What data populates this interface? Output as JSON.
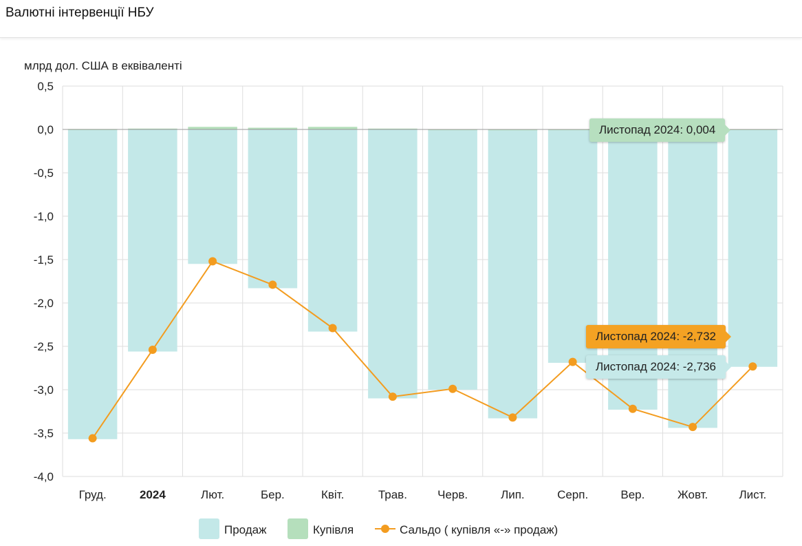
{
  "header": {
    "title": "Валютні інтервенції НБУ"
  },
  "chart_data": {
    "type": "bar",
    "title": "Валютні інтервенції НБУ",
    "ylabel": "млрд дол. США в еквіваленті",
    "xlabel": "",
    "ylim": [
      -4.0,
      0.5
    ],
    "yticks": [
      "0,5",
      "0,0",
      "-0,5",
      "-1,0",
      "-1,5",
      "-2,0",
      "-2,5",
      "-3,0",
      "-3,5",
      "-4,0"
    ],
    "ytick_values": [
      0.5,
      0,
      -0.5,
      -1,
      -1.5,
      -2,
      -2.5,
      -3,
      -3.5,
      -4
    ],
    "grid": true,
    "legend_position": "bottom",
    "categories": [
      "Груд.",
      "2024",
      "Лют.",
      "Бер.",
      "Квіт.",
      "Трав.",
      "Черв.",
      "Лип.",
      "Серп.",
      "Вер.",
      "Жовт.",
      "Лист."
    ],
    "bold_category": "2024",
    "series": [
      {
        "name": "Продаж",
        "type": "bar",
        "color": "#c3e8e8",
        "values": [
          -3.57,
          -2.56,
          -1.55,
          -1.83,
          -2.33,
          -3.1,
          -3.0,
          -3.33,
          -2.69,
          -3.23,
          -3.44,
          -2.736
        ]
      },
      {
        "name": "Купівля",
        "type": "bar",
        "color": "#b5dfbc",
        "values": [
          0.005,
          0.01,
          0.03,
          0.02,
          0.03,
          0.01,
          0.003,
          0.002,
          0.003,
          0.003,
          0.002,
          0.004
        ]
      },
      {
        "name": "Сальдо ( купівля «-» продаж)",
        "type": "line",
        "color": "#f39c1f",
        "values": [
          -3.56,
          -2.54,
          -1.52,
          -1.79,
          -2.29,
          -3.08,
          -2.99,
          -3.32,
          -2.68,
          -3.22,
          -3.43,
          -2.732
        ]
      }
    ],
    "tooltips": {
      "buy": "Листопад 2024: 0,004",
      "saldo": "Листопад 2024: -2,732",
      "sale": "Листопад 2024: -2,736"
    }
  }
}
